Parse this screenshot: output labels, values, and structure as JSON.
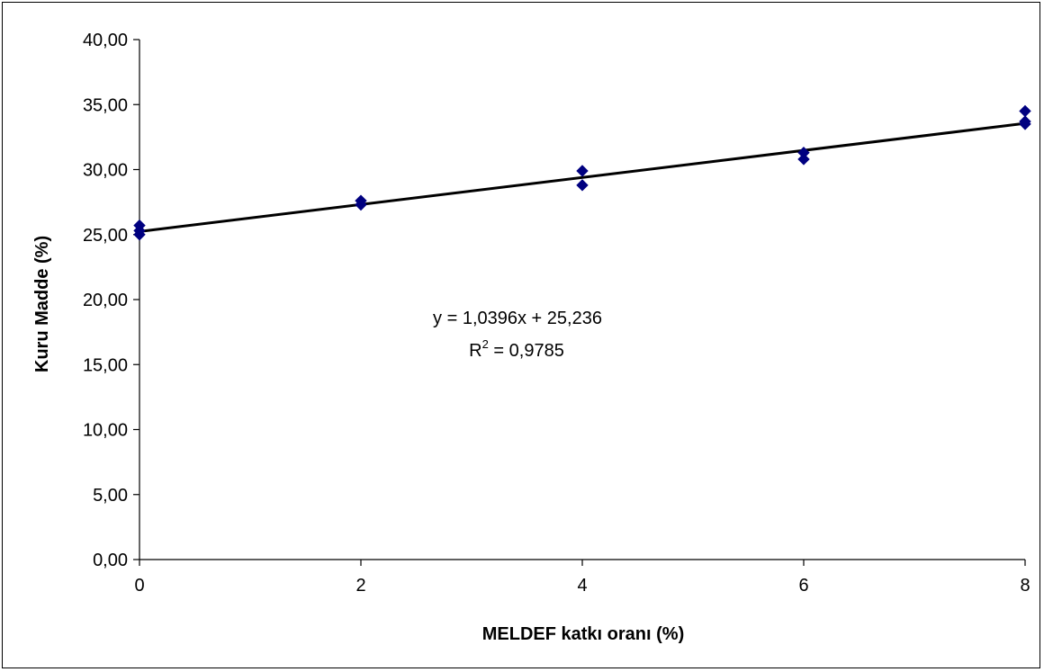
{
  "chart_data": {
    "type": "scatter",
    "title": "",
    "xlabel": "MELDEF katkı oranı (%)",
    "ylabel": "Kuru Madde (%)",
    "xlim": [
      0,
      8
    ],
    "ylim": [
      0,
      40
    ],
    "x_ticks": [
      "0",
      "2",
      "4",
      "6",
      "8"
    ],
    "y_ticks": [
      "0,00",
      "5,00",
      "10,00",
      "15,00",
      "20,00",
      "25,00",
      "30,00",
      "35,00",
      "40,00"
    ],
    "grid": false,
    "legend": "none",
    "marker_color": "#000080",
    "series": [
      {
        "x": [
          0,
          0,
          0,
          2,
          2,
          4,
          4,
          6,
          6,
          8,
          8,
          8
        ],
        "y": [
          25.0,
          25.3,
          25.7,
          27.3,
          27.6,
          28.8,
          29.9,
          30.8,
          31.3,
          33.5,
          33.7,
          34.5
        ]
      }
    ],
    "trendline": {
      "type": "linear",
      "slope": 1.0396,
      "intercept": 25.236,
      "color": "#000000"
    },
    "annotations": {
      "equation": "y = 1,0396x + 25,236",
      "r2_prefix": "R",
      "r2_sup": "2",
      "r2_value": " = 0,9785"
    }
  }
}
